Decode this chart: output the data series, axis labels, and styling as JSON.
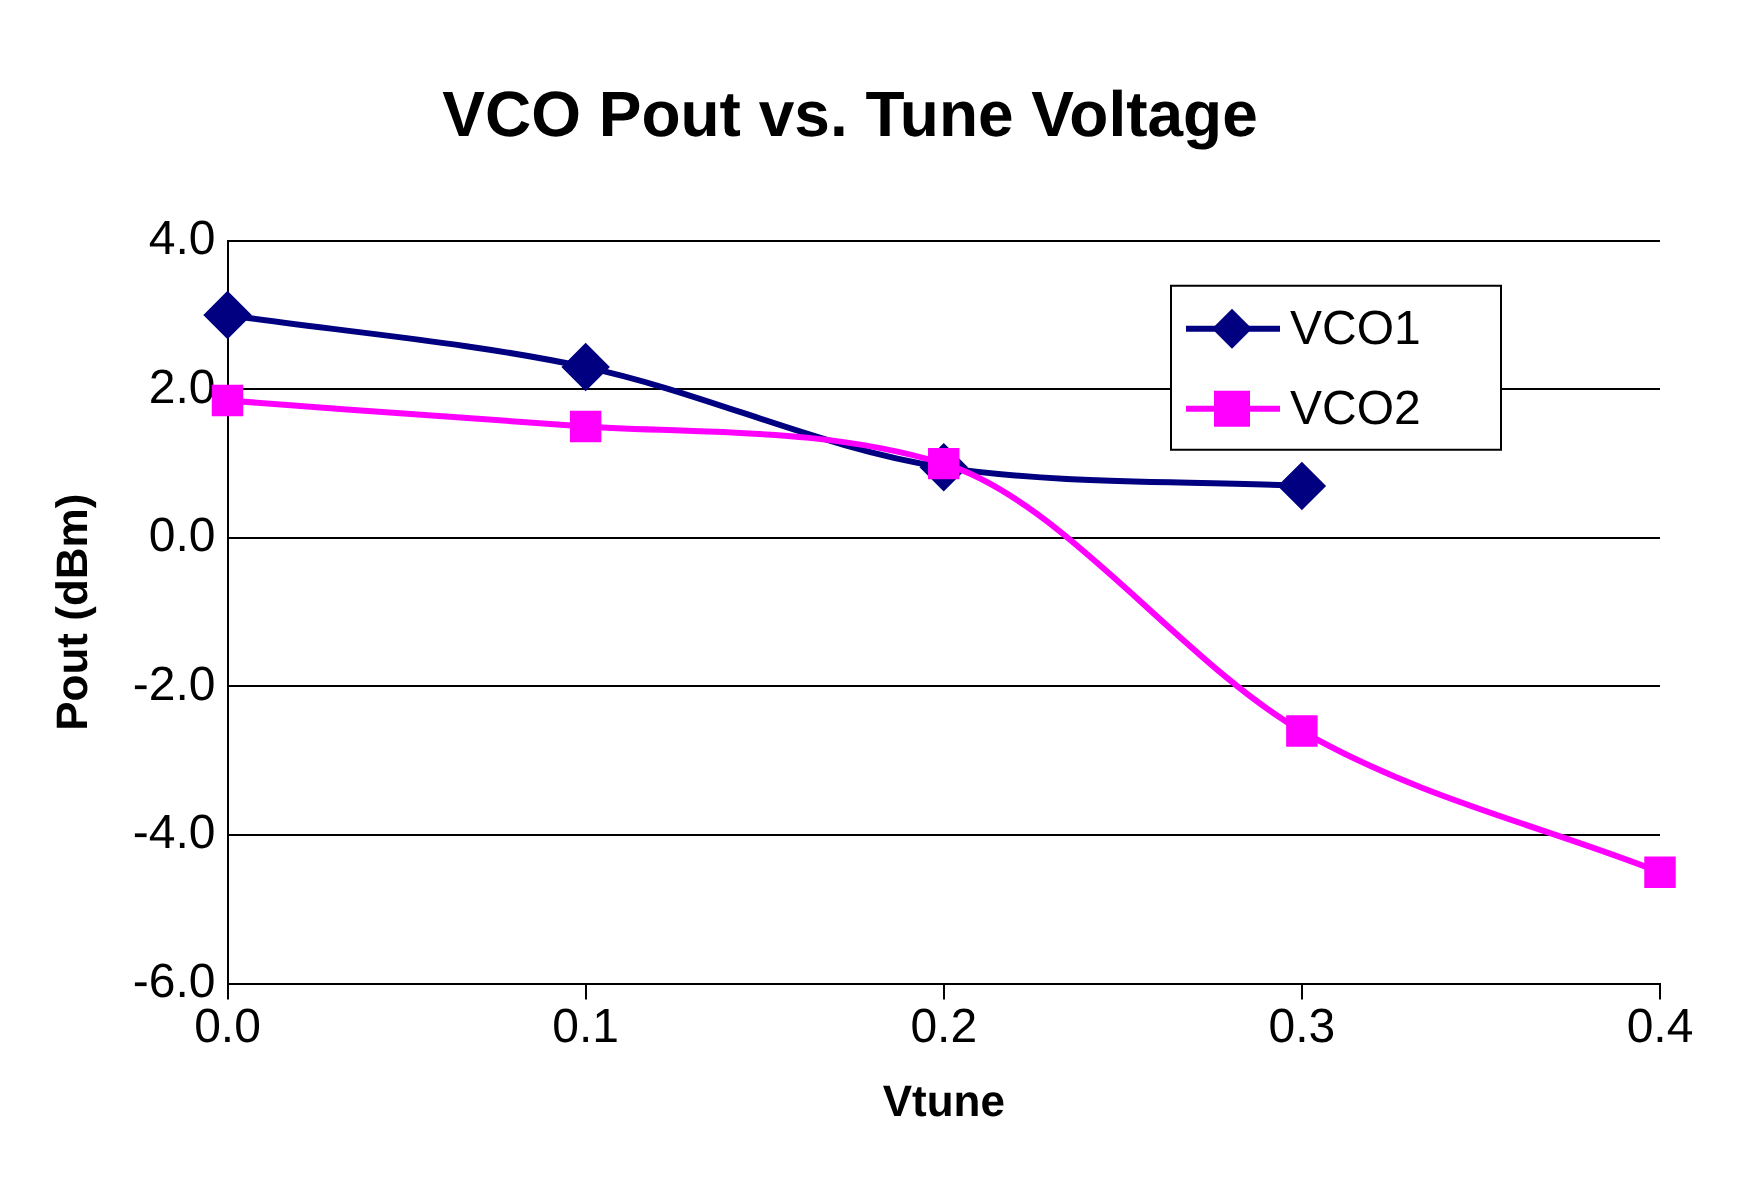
{
  "chart_data": {
    "type": "line",
    "title": "VCO Pout vs. Tune Voltage",
    "xlabel": "Vtune",
    "ylabel": "Pout (dBm)",
    "xlim": [
      0,
      0.4
    ],
    "xticks": [
      {
        "value": 0,
        "label": "0.0"
      },
      0.1,
      0.2,
      0.3,
      0.4
    ],
    "ylim": [
      -6,
      4
    ],
    "yticks": [
      {
        "value": -6,
        "label": "-6.0"
      },
      {
        "value": -4,
        "label": "-4.0"
      },
      {
        "value": -2,
        "label": "-2.0"
      },
      {
        "value": 0,
        "label": "0.0"
      },
      {
        "value": 2,
        "label": "2.0"
      },
      {
        "value": 4,
        "label": "4.0"
      }
    ],
    "grid": "y",
    "legend": "top right",
    "series": [
      {
        "name": "VCO1",
        "color": "#000080",
        "marker": "diamond",
        "x": [
          0,
          0.1,
          0.2,
          0.3
        ],
        "values": [
          3.0,
          2.3,
          0.95,
          0.7
        ]
      },
      {
        "name": "VCO2",
        "color": "#ff00ff",
        "marker": "square",
        "x": [
          0,
          0.1,
          0.2,
          0.3,
          0.4
        ],
        "values": [
          1.85,
          1.5,
          1.0,
          -2.6,
          -4.5
        ]
      }
    ]
  }
}
